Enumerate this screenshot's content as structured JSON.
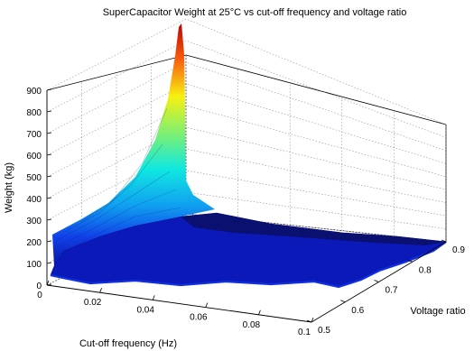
{
  "chart_data": {
    "type": "surface3d",
    "title": "SuperCapacitor Weight at 25°C vs cut-off frequency and voltage ratio",
    "xlabel": "Cut-off frequency (Hz)",
    "ylabel": "Voltage ratio",
    "zlabel": "Weight (kg)",
    "xlim": [
      0,
      0.1
    ],
    "ylim": [
      0.5,
      0.9
    ],
    "zlim": [
      0,
      900
    ],
    "x_ticks": [
      "0",
      "0.02",
      "0.04",
      "0.06",
      "0.08",
      "0.1"
    ],
    "y_ticks": [
      "0.5",
      "0.6",
      "0.7",
      "0.8",
      "0.9"
    ],
    "z_ticks": [
      "0",
      "100",
      "200",
      "300",
      "400",
      "500",
      "600",
      "700",
      "800",
      "900"
    ],
    "grid": true,
    "colormap": "jet",
    "peak": {
      "x": 0.002,
      "y": 0.9,
      "z": 1000
    },
    "surface_samples": [
      {
        "x": 0.002,
        "y": 0.5,
        "z": 230
      },
      {
        "x": 0.002,
        "y": 0.6,
        "z": 300
      },
      {
        "x": 0.002,
        "y": 0.7,
        "z": 420
      },
      {
        "x": 0.002,
        "y": 0.8,
        "z": 620
      },
      {
        "x": 0.002,
        "y": 0.9,
        "z": 1000
      },
      {
        "x": 0.02,
        "y": 0.5,
        "z": 15
      },
      {
        "x": 0.02,
        "y": 0.9,
        "z": 95
      },
      {
        "x": 0.1,
        "y": 0.5,
        "z": 5
      },
      {
        "x": 0.1,
        "y": 0.9,
        "z": 20
      }
    ]
  }
}
